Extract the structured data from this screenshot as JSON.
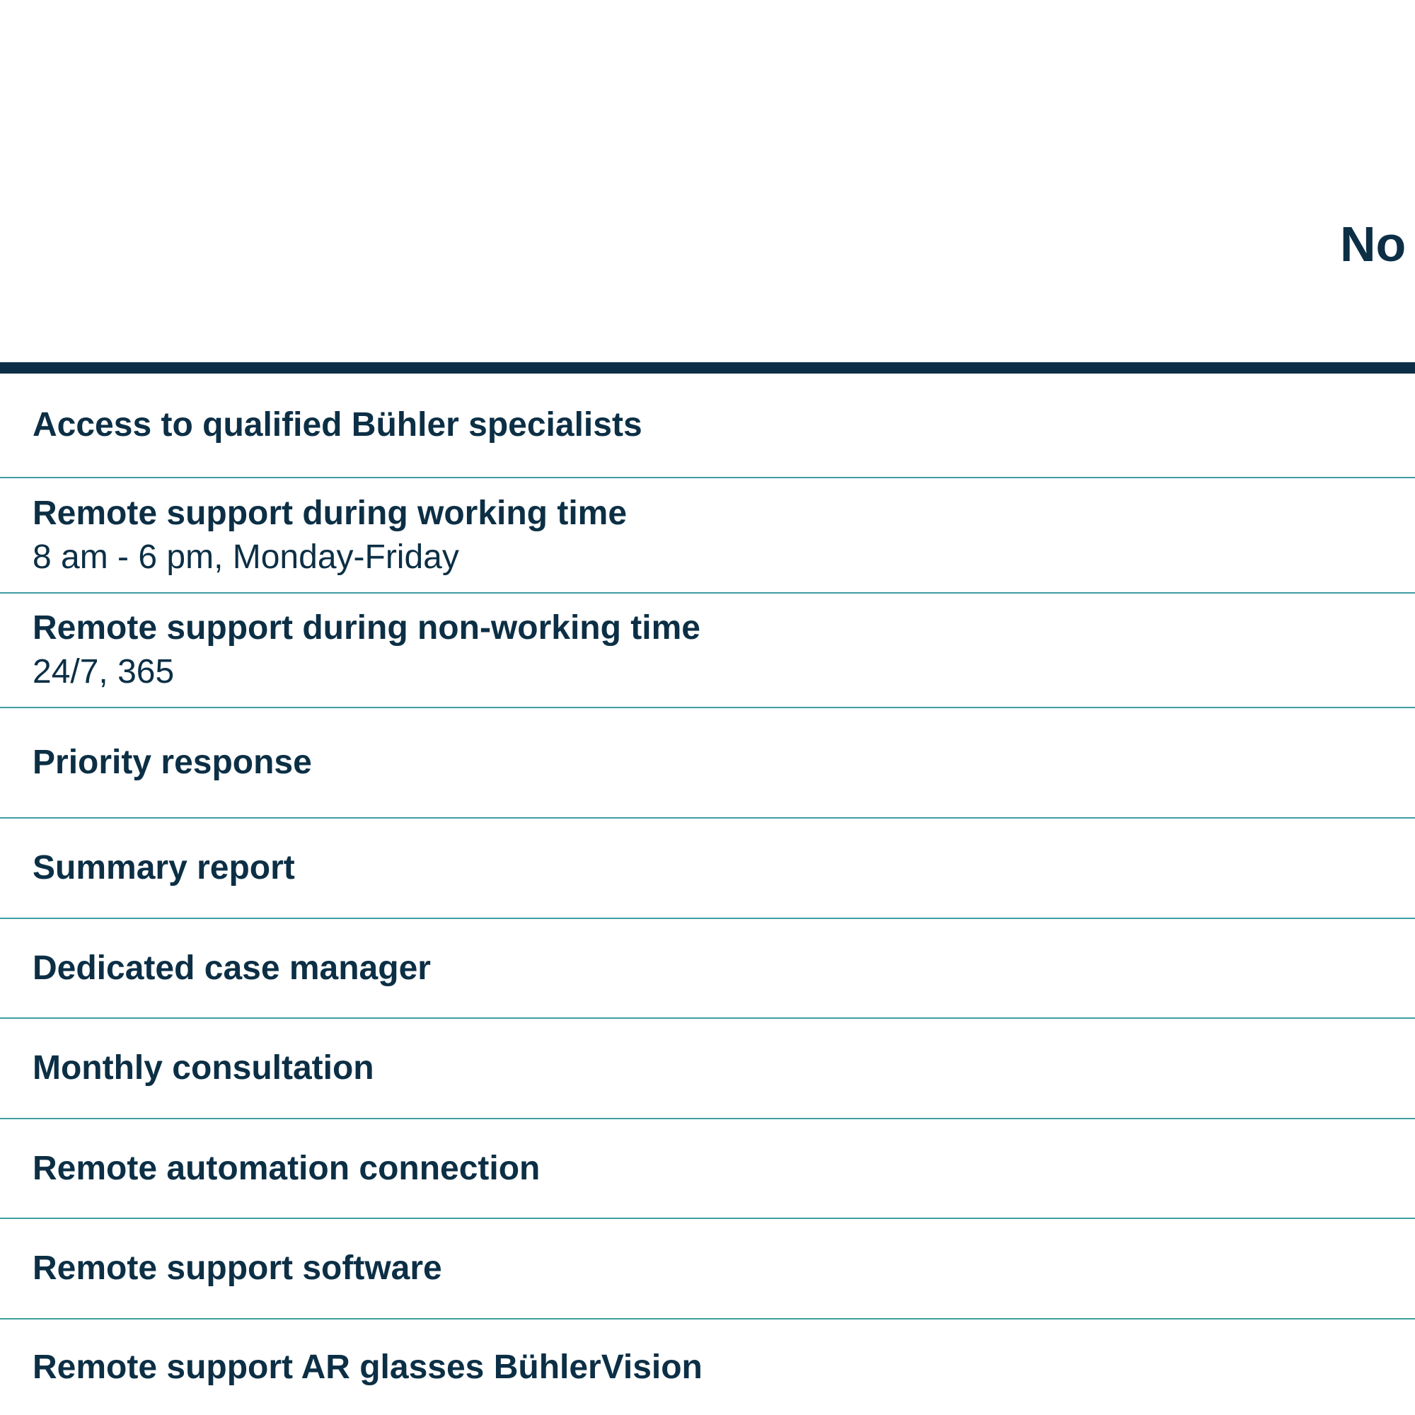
{
  "table": {
    "column_header": "No",
    "rows": [
      {
        "title": "Access to qualified Bühler specialists",
        "subtitle": ""
      },
      {
        "title": "Remote support during working time",
        "subtitle": "8 am - 6 pm, Monday-Friday"
      },
      {
        "title": "Remote support during non-working time",
        "subtitle": "24/7, 365"
      },
      {
        "title": "Priority response",
        "subtitle": ""
      },
      {
        "title": "Summary report",
        "subtitle": ""
      },
      {
        "title": "Dedicated case manager",
        "subtitle": ""
      },
      {
        "title": "Monthly consultation",
        "subtitle": ""
      },
      {
        "title": "Remote automation connection",
        "subtitle": ""
      },
      {
        "title": "Remote support software",
        "subtitle": ""
      },
      {
        "title": "Remote support AR glasses BühlerVision",
        "subtitle": ""
      }
    ]
  },
  "colors": {
    "text": "#0c2f45",
    "header_rule": "#0c2f45",
    "row_divider": "#3f9ea0",
    "background": "#ffffff"
  }
}
